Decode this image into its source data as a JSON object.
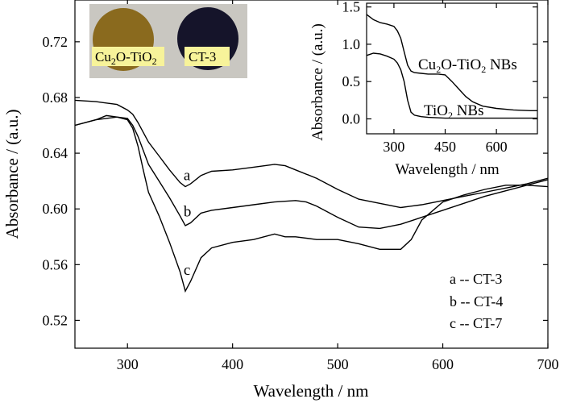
{
  "colors": {
    "line": "#000000",
    "photo_background": "#c9c7c1",
    "disc_cu2o_tio2": "#8a6a1e",
    "disc_ct3": "#15142a",
    "label_box": "#f7f39a"
  },
  "photo": {
    "labels": [
      {
        "text": "Cu",
        "sub": "2",
        "text2": "O-TiO",
        "sub2": "2"
      },
      {
        "text": "CT-3"
      }
    ]
  },
  "legend": [
    "a -- CT-3",
    "b -- CT-4",
    "c -- CT-7"
  ],
  "chart_data": [
    {
      "type": "line",
      "xlabel": "Wavelength / nm",
      "ylabel": "Absorbance / (a.u.)",
      "xlim": [
        250,
        700
      ],
      "ylim": [
        0.5,
        0.75
      ],
      "xticks": [
        300,
        400,
        500,
        600,
        700
      ],
      "yticks": [
        0.52,
        0.56,
        0.6,
        0.64,
        0.68,
        0.72
      ],
      "ytick_labels": [
        "0.52",
        "0.56",
        "0.60",
        "0.64",
        "0.68",
        "0.72"
      ],
      "series": [
        {
          "name": "a",
          "x": [
            250,
            270,
            290,
            300,
            305,
            310,
            315,
            320,
            330,
            340,
            350,
            355,
            360,
            370,
            380,
            400,
            420,
            440,
            450,
            460,
            480,
            500,
            520,
            540,
            560,
            580,
            600,
            620,
            640,
            660,
            680,
            700
          ],
          "y": [
            0.678,
            0.677,
            0.675,
            0.671,
            0.668,
            0.662,
            0.655,
            0.648,
            0.638,
            0.628,
            0.619,
            0.616,
            0.618,
            0.624,
            0.627,
            0.628,
            0.63,
            0.632,
            0.631,
            0.628,
            0.622,
            0.614,
            0.607,
            0.604,
            0.601,
            0.603,
            0.606,
            0.609,
            0.612,
            0.615,
            0.618,
            0.622
          ]
        },
        {
          "name": "b",
          "x": [
            250,
            270,
            290,
            300,
            305,
            310,
            315,
            320,
            330,
            340,
            350,
            355,
            360,
            370,
            380,
            400,
            420,
            440,
            460,
            470,
            480,
            500,
            520,
            540,
            560,
            580,
            600,
            620,
            640,
            660,
            680,
            700
          ],
          "y": [
            0.66,
            0.664,
            0.666,
            0.665,
            0.66,
            0.652,
            0.642,
            0.632,
            0.62,
            0.608,
            0.595,
            0.588,
            0.59,
            0.597,
            0.599,
            0.601,
            0.603,
            0.605,
            0.606,
            0.605,
            0.602,
            0.594,
            0.587,
            0.586,
            0.589,
            0.594,
            0.599,
            0.604,
            0.609,
            0.613,
            0.617,
            0.621
          ]
        },
        {
          "name": "c",
          "x": [
            250,
            270,
            280,
            290,
            300,
            305,
            310,
            315,
            320,
            330,
            340,
            350,
            355,
            360,
            370,
            380,
            400,
            420,
            440,
            450,
            460,
            480,
            500,
            520,
            540,
            560,
            570,
            580,
            600,
            620,
            640,
            660,
            680,
            700
          ],
          "y": [
            0.66,
            0.664,
            0.667,
            0.666,
            0.664,
            0.658,
            0.645,
            0.628,
            0.612,
            0.595,
            0.576,
            0.555,
            0.541,
            0.548,
            0.565,
            0.572,
            0.576,
            0.578,
            0.582,
            0.58,
            0.58,
            0.578,
            0.578,
            0.575,
            0.571,
            0.571,
            0.578,
            0.592,
            0.605,
            0.61,
            0.614,
            0.617,
            0.617,
            0.616
          ]
        }
      ],
      "series_labels": [
        {
          "text": "a",
          "x": 358,
          "y": 0.624
        },
        {
          "text": "b",
          "x": 358,
          "y": 0.598
        },
        {
          "text": "c",
          "x": 358,
          "y": 0.556
        }
      ]
    },
    {
      "type": "line",
      "xlabel": "Wavelength / nm",
      "ylabel": "Absorbance / (a.u.)",
      "xlim": [
        220,
        720
      ],
      "ylim": [
        -0.2,
        1.55
      ],
      "xticks": [
        300,
        450,
        600
      ],
      "yticks": [
        0.0,
        0.5,
        1.0,
        1.5
      ],
      "ytick_labels": [
        "0.0",
        "0.5",
        "1.0",
        "1.5"
      ],
      "series": [
        {
          "name": "Cu2O-TiO2 NBs",
          "x": [
            220,
            240,
            260,
            280,
            300,
            310,
            320,
            330,
            340,
            350,
            360,
            380,
            400,
            430,
            450,
            470,
            490,
            510,
            530,
            560,
            600,
            650,
            700,
            720
          ],
          "y": [
            1.4,
            1.33,
            1.29,
            1.27,
            1.24,
            1.18,
            1.08,
            0.9,
            0.72,
            0.64,
            0.62,
            0.61,
            0.6,
            0.6,
            0.59,
            0.5,
            0.4,
            0.3,
            0.23,
            0.17,
            0.14,
            0.12,
            0.11,
            0.11
          ]
        },
        {
          "name": "TiO2 NBs",
          "x": [
            220,
            240,
            260,
            280,
            300,
            310,
            320,
            330,
            340,
            350,
            360,
            370,
            380,
            400,
            450,
            500,
            600,
            720
          ],
          "y": [
            0.85,
            0.88,
            0.87,
            0.84,
            0.8,
            0.75,
            0.66,
            0.5,
            0.25,
            0.09,
            0.05,
            0.04,
            0.03,
            0.02,
            0.01,
            0.01,
            0.01,
            0.01
          ]
        }
      ],
      "series_labels": [
        {
          "text": "Cu",
          "sub": "2",
          "text2": "O-TiO",
          "sub2": "2",
          "text3": " NBs",
          "x": 365,
          "y": 0.82
        },
        {
          "text": "TiO",
          "sub": "2",
          "text3": " NBs",
          "x": 380,
          "y": 0.18
        }
      ]
    }
  ]
}
